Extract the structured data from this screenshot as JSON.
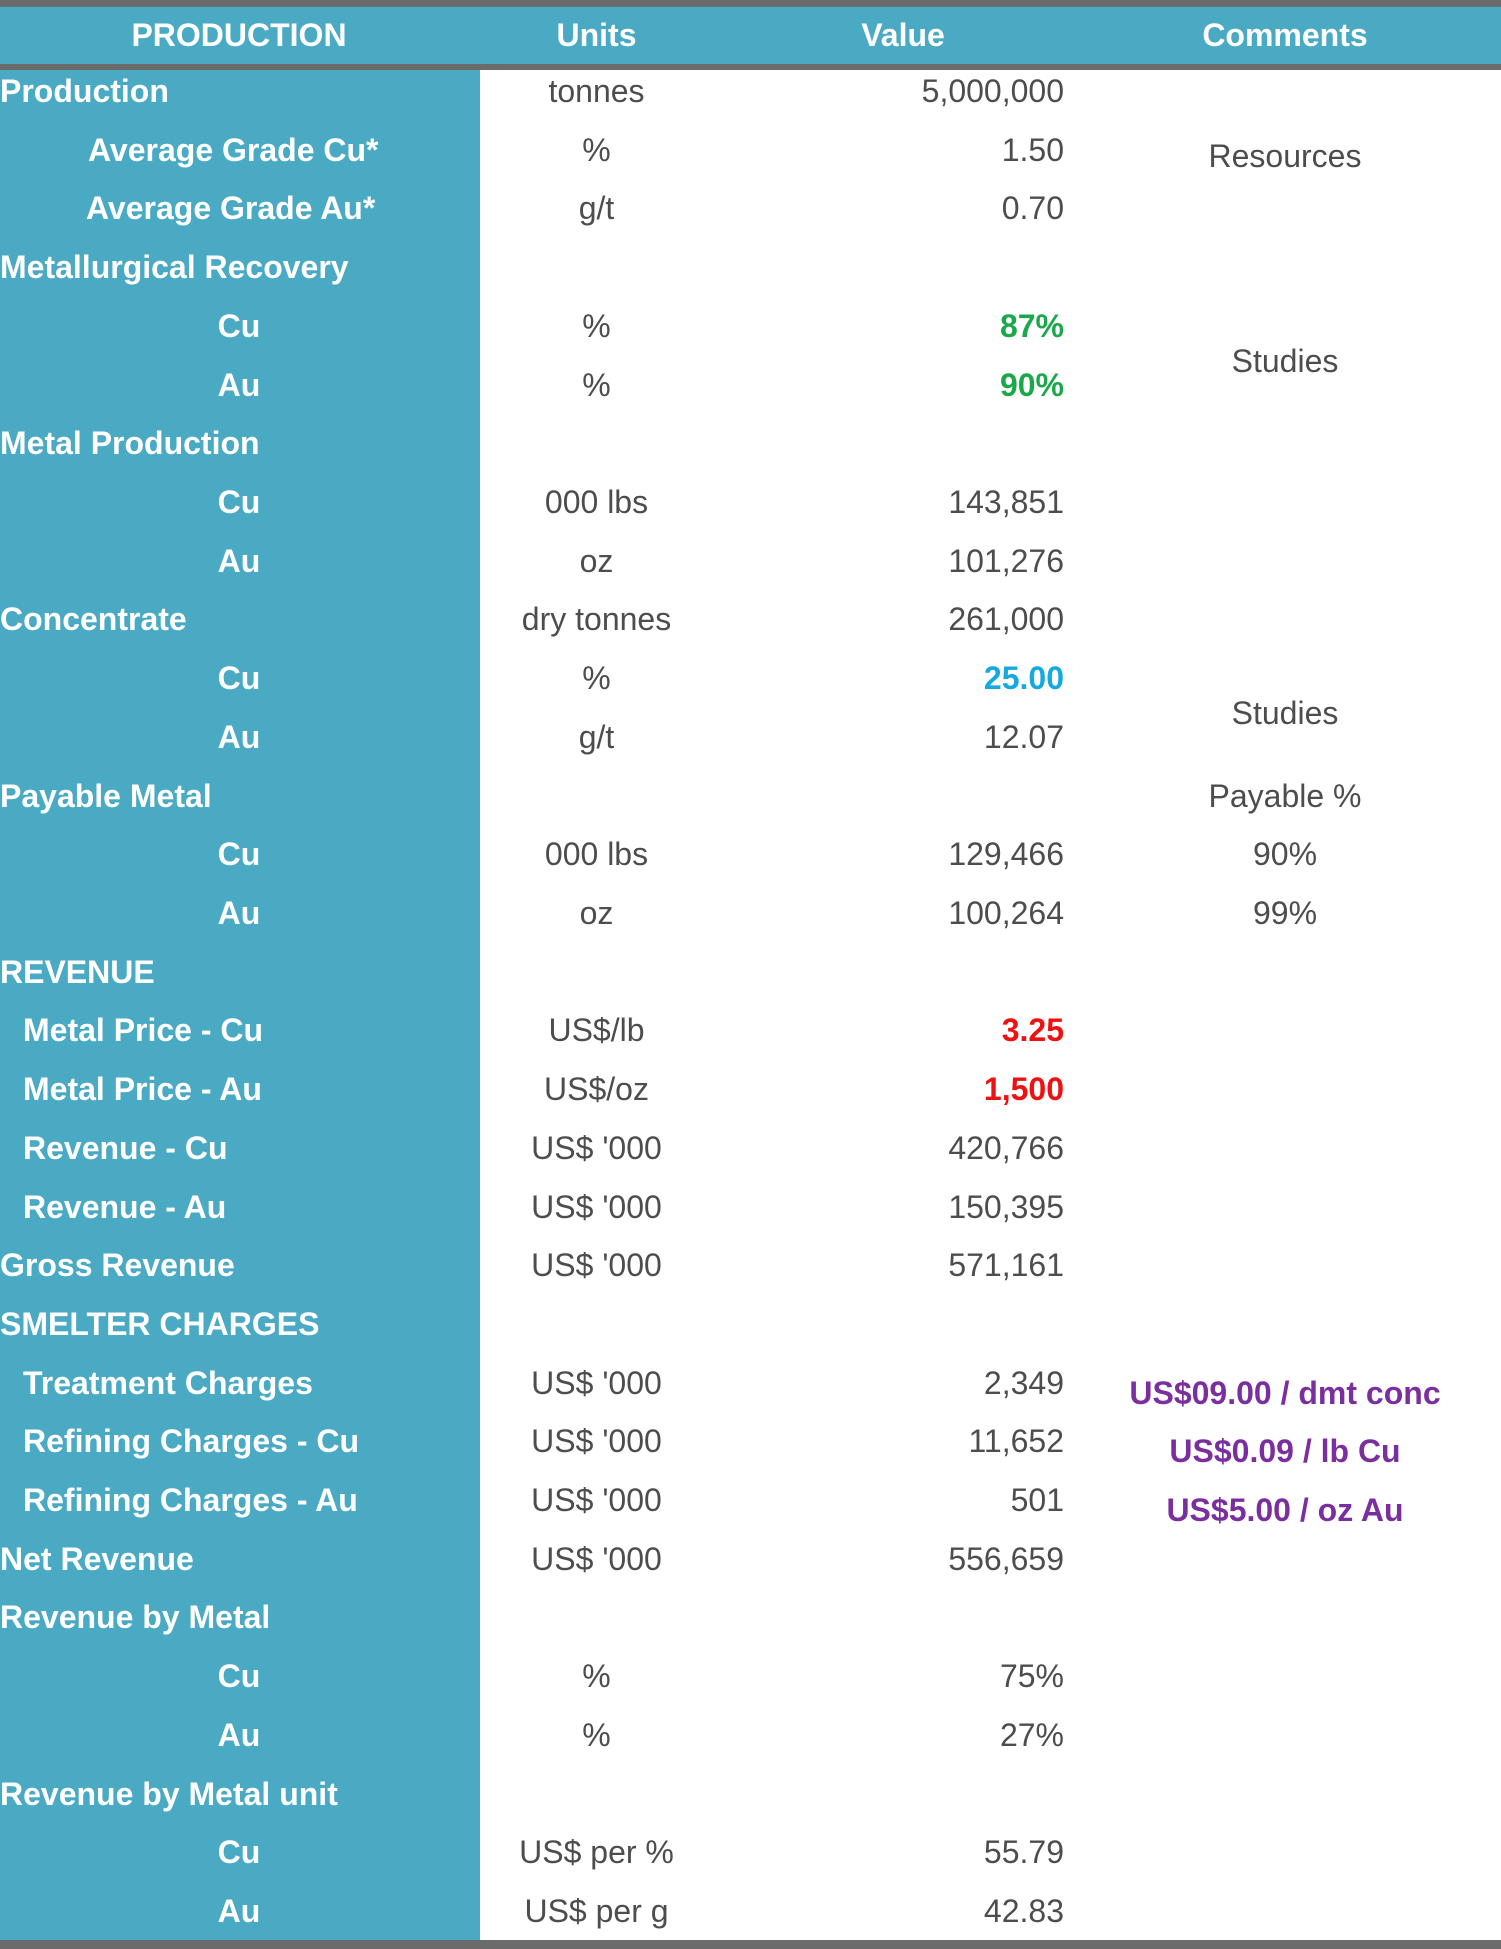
{
  "header": {
    "production": "PRODUCTION",
    "units": "Units",
    "value": "Value",
    "comments": "Comments"
  },
  "rows": [
    {
      "label": "Production",
      "units": "tonnes",
      "value": "5,000,000"
    },
    {
      "label": "Average Grade Cu*",
      "units": "%",
      "value": "1.50"
    },
    {
      "label": "Average Grade Au*",
      "units": "g/t",
      "value": "0.70"
    },
    {
      "label": "Metallurgical Recovery",
      "units": "",
      "value": ""
    },
    {
      "label": "Cu",
      "units": "%",
      "value": "87%"
    },
    {
      "label": "Au",
      "units": "%",
      "value": "90%"
    },
    {
      "label": "Metal Production",
      "units": "",
      "value": ""
    },
    {
      "label": "Cu",
      "units": "000 lbs",
      "value": "143,851"
    },
    {
      "label": "Au",
      "units": "oz",
      "value": "101,276"
    },
    {
      "label": "Concentrate",
      "units": "dry tonnes",
      "value": "261,000"
    },
    {
      "label": "Cu",
      "units": "%",
      "value": "25.00"
    },
    {
      "label": "Au",
      "units": "g/t",
      "value": "12.07"
    },
    {
      "label": "Payable Metal",
      "units": "",
      "value": ""
    },
    {
      "label": "Cu",
      "units": "000 lbs",
      "value": "129,466"
    },
    {
      "label": "Au",
      "units": "oz",
      "value": "100,264"
    },
    {
      "label": "REVENUE",
      "units": "",
      "value": ""
    },
    {
      "label": "Metal Price - Cu",
      "units": "US$/lb",
      "value": "3.25"
    },
    {
      "label": "Metal Price - Au",
      "units": "US$/oz",
      "value": "1,500"
    },
    {
      "label": "Revenue - Cu",
      "units": "US$ '000",
      "value": "420,766"
    },
    {
      "label": "Revenue - Au",
      "units": "US$ '000",
      "value": "150,395"
    },
    {
      "label": "Gross Revenue",
      "units": "US$ '000",
      "value": "571,161"
    },
    {
      "label": "SMELTER CHARGES",
      "units": "",
      "value": ""
    },
    {
      "label": "Treatment Charges",
      "units": "US$ '000",
      "value": "2,349"
    },
    {
      "label": "Refining Charges - Cu",
      "units": "US$ '000",
      "value": "11,652"
    },
    {
      "label": "Refining Charges - Au",
      "units": "US$ '000",
      "value": "501"
    },
    {
      "label": "Net Revenue",
      "units": "US$ '000",
      "value": "556,659"
    },
    {
      "label": "Revenue by Metal",
      "units": "",
      "value": ""
    },
    {
      "label": "Cu",
      "units": "%",
      "value": "75%"
    },
    {
      "label": "Au",
      "units": "%",
      "value": "27%"
    },
    {
      "label": "Revenue by Metal unit",
      "units": "",
      "value": ""
    },
    {
      "label": "Cu",
      "units": "US$ per %",
      "value": "55.79"
    },
    {
      "label": "Au",
      "units": "US$ per g",
      "value": "42.83"
    }
  ],
  "comments": {
    "resources": "Resources",
    "studies_recovery": "Studies",
    "studies_concentrate": "Studies",
    "payable_header": "Payable %",
    "payable_cu": "90%",
    "payable_au": "99%",
    "treatment_rate": "US$09.00 / dmt conc",
    "refining_cu_rate": "US$0.09 / lb Cu",
    "refining_au_rate": "US$5.00 / oz Au"
  },
  "colors": {
    "header_bg": "#4aaac4",
    "recovery_green": "#1aa84a",
    "concentrate_blue": "#16a9e0",
    "price_red": "#ee1111",
    "charge_purple": "#7b2f9e"
  }
}
